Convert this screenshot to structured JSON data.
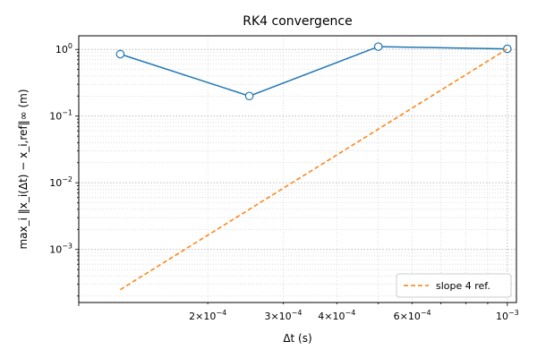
{
  "chart_data": {
    "type": "line",
    "title": "RK4 convergence",
    "xlabel": "Δt (s)",
    "ylabel": "max_i ‖x_i(Δt) − x_i,ref‖∞ (m)",
    "x_scale": "log",
    "y_scale": "log",
    "xlim": [
      0.0001,
      0.00105
    ],
    "ylim": [
      0.00016,
      1.6
    ],
    "x_ticks": [
      {
        "value": 0.0002,
        "base": "2×10",
        "exp": "−4"
      },
      {
        "value": 0.0003,
        "base": "3×10",
        "exp": "−4"
      },
      {
        "value": 0.0004,
        "base": "4×10",
        "exp": "−4"
      },
      {
        "value": 0.0006,
        "base": "6×10",
        "exp": "−4"
      },
      {
        "value": 0.001,
        "base": "10",
        "exp": "−3"
      }
    ],
    "y_ticks": [
      {
        "value": 0.001,
        "base": "10",
        "exp": "−3"
      },
      {
        "value": 0.01,
        "base": "10",
        "exp": "−2"
      },
      {
        "value": 0.1,
        "base": "10",
        "exp": "−1"
      },
      {
        "value": 1,
        "base": "10",
        "exp": "0"
      }
    ],
    "grid": true,
    "legend_position": "bottom-right",
    "series": [
      {
        "style": "solid-line-with-hollow-markers",
        "color": "#1f77b4",
        "x": [
          0.000125,
          0.00025,
          0.0005,
          0.001
        ],
        "y": [
          0.85,
          0.2,
          1.1,
          1.02
        ]
      },
      {
        "name": "slope 4 ref.",
        "style": "dashed",
        "color": "#ff7f0e",
        "x": [
          0.000125,
          0.001
        ],
        "y": [
          0.00025,
          1.02
        ]
      }
    ]
  }
}
